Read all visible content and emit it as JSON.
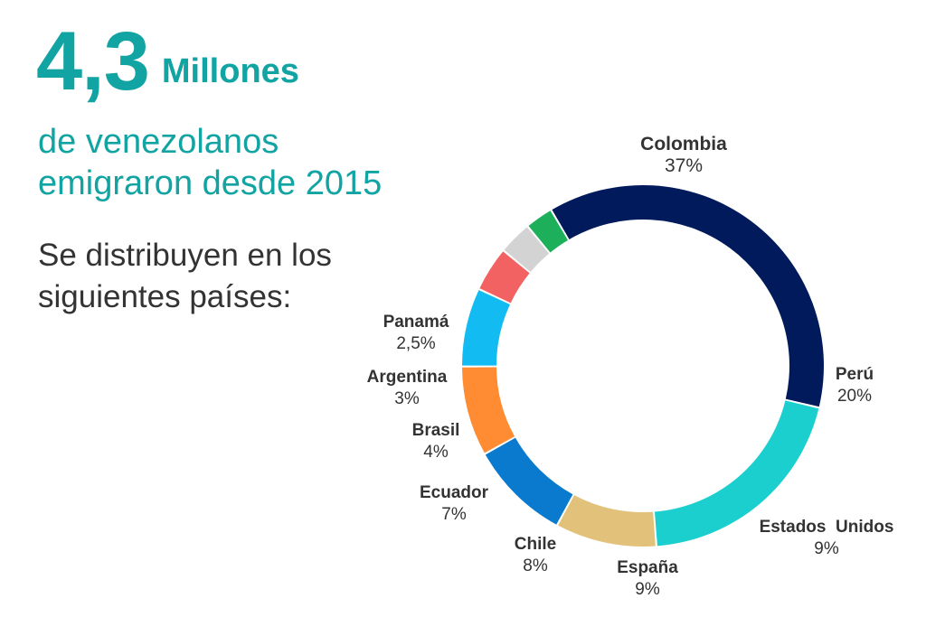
{
  "header": {
    "big_number": "4,3",
    "unit": "Millones",
    "subtitle_line1": "de venezolanos",
    "subtitle_line2": "emigraron desde 2015",
    "description_line1": "Se distribuyen en los",
    "description_line2": "siguientes países:"
  },
  "chart_data": {
    "type": "pie",
    "style": "donut",
    "categories": [
      "Colombia",
      "Perú",
      "Estados  Unidos",
      "España",
      "Chile",
      "Ecuador",
      "Brasil",
      "Argentina",
      "Panamá"
    ],
    "values": [
      37,
      20,
      9,
      9,
      8,
      7,
      4,
      3,
      2.5
    ],
    "value_labels": [
      "37%",
      "20%",
      "9%",
      "9%",
      "8%",
      "7%",
      "4%",
      "3%",
      "2,5%"
    ],
    "colors": [
      "#001A5C",
      "#1CCFCF",
      "#E2C27A",
      "#0A7ACF",
      "#FF8C33",
      "#12BCF2",
      "#F26262",
      "#D3D3D3",
      "#1DAF5A"
    ],
    "title": "",
    "legend": "none",
    "grid": false
  }
}
